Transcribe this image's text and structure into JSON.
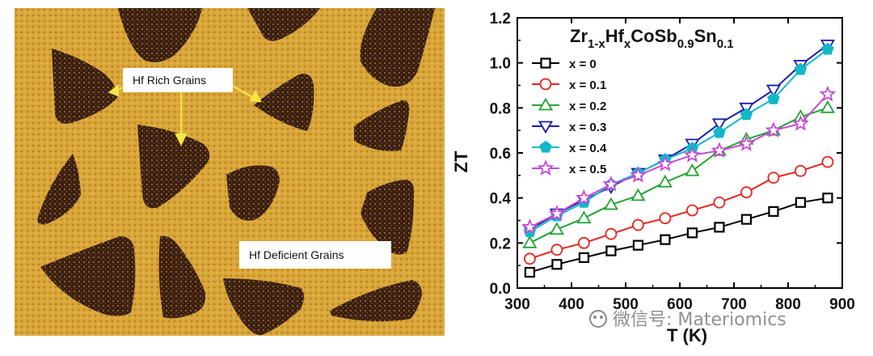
{
  "micrograph": {
    "label_rich": "Hf Rich Grains",
    "label_deficient": "Hf Deficient Grains",
    "colors": {
      "matrix": "#d9a63a",
      "grain": "#3a1f14",
      "speckle": "#c88e28",
      "arrow": "#f2e640"
    }
  },
  "chart_data": {
    "type": "line",
    "title_parts": [
      "Zr",
      "1-x",
      "Hf",
      "x",
      "CoSb",
      "0.9",
      "Sn",
      "0.1"
    ],
    "xlabel": "T (K)",
    "ylabel": "ZT",
    "xlim": [
      300,
      900
    ],
    "ylim": [
      0.0,
      1.2
    ],
    "xticks": [
      "300",
      "400",
      "500",
      "600",
      "700",
      "800",
      "900"
    ],
    "yticks": [
      "0.0",
      "0.2",
      "0.4",
      "0.6",
      "0.8",
      "1.0",
      "1.2"
    ],
    "legend_position": "top-left",
    "x": [
      323,
      373,
      423,
      473,
      523,
      573,
      623,
      673,
      723,
      773,
      823,
      873
    ],
    "series": [
      {
        "name": "x = 0",
        "color": "#000000",
        "marker": "square",
        "values": [
          0.07,
          0.105,
          0.135,
          0.165,
          0.19,
          0.215,
          0.245,
          0.27,
          0.305,
          0.34,
          0.38,
          0.4
        ]
      },
      {
        "name": "x = 0.1",
        "color": "#e8251c",
        "marker": "circle",
        "values": [
          0.13,
          0.17,
          0.2,
          0.24,
          0.28,
          0.31,
          0.345,
          0.38,
          0.425,
          0.49,
          0.52,
          0.56
        ]
      },
      {
        "name": "x = 0.2",
        "color": "#23a433",
        "marker": "triangle-up",
        "values": [
          0.2,
          0.26,
          0.31,
          0.37,
          0.41,
          0.47,
          0.52,
          0.61,
          0.66,
          0.7,
          0.76,
          0.8
        ]
      },
      {
        "name": "x = 0.3",
        "color": "#1b1bb0",
        "marker": "triangle-down",
        "values": [
          0.26,
          0.33,
          0.39,
          0.45,
          0.51,
          0.57,
          0.64,
          0.73,
          0.8,
          0.88,
          0.99,
          1.08
        ]
      },
      {
        "name": "x = 0.4",
        "color": "#11b8c8",
        "marker": "pentagon",
        "values": [
          0.25,
          0.32,
          0.38,
          0.46,
          0.51,
          0.57,
          0.62,
          0.69,
          0.77,
          0.84,
          0.97,
          1.06
        ]
      },
      {
        "name": "x = 0.5",
        "color": "#c74ad6",
        "marker": "star",
        "values": [
          0.27,
          0.33,
          0.4,
          0.46,
          0.5,
          0.55,
          0.59,
          0.61,
          0.64,
          0.7,
          0.73,
          0.86
        ]
      }
    ]
  },
  "watermark": {
    "text": "微信号: Materiomics"
  }
}
